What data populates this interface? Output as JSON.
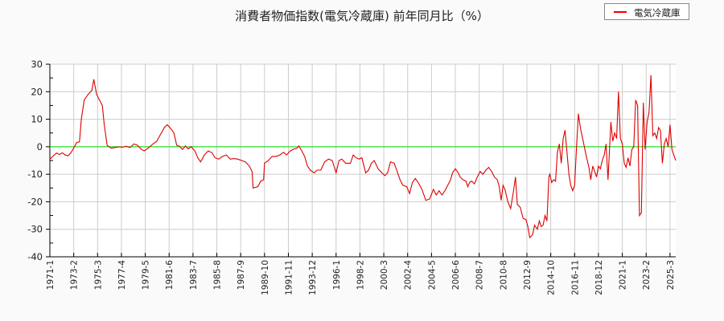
{
  "chart_data": {
    "type": "line",
    "title": "消費者物価指数(電気冷蔵庫) 前年同月比（%）",
    "xlabel": "",
    "ylabel": "",
    "ylim": [
      -40,
      30
    ],
    "yticks": [
      30,
      20,
      10,
      0,
      -10,
      -20,
      -30,
      -40
    ],
    "grid": true,
    "legend_position": "top-right",
    "x_tick_labels": [
      "1971-1",
      "1973-2",
      "1975-3",
      "1977-4",
      "1979-5",
      "1981-6",
      "1983-7",
      "1985-8",
      "1987-9",
      "1989-10",
      "1991-11",
      "1993-12",
      "1996-1",
      "1998-2",
      "2000-3",
      "2002-4",
      "2004-5",
      "2006-6",
      "2008-7",
      "2010-8",
      "2012-9",
      "2014-10",
      "2016-11",
      "2018-12",
      "2021-1",
      "2023-2",
      "2025-3"
    ],
    "reference_line": {
      "value": 0,
      "color": "#00dd00"
    },
    "series": [
      {
        "name": "電気冷蔵庫",
        "color": "#dd0000",
        "points": [
          [
            "1971-1",
            -4.5
          ],
          [
            "1971-4",
            -3.5
          ],
          [
            "1971-8",
            -2.3
          ],
          [
            "1971-11",
            -2.8
          ],
          [
            "1972-2",
            -2.2
          ],
          [
            "1972-5",
            -3
          ],
          [
            "1972-8",
            -3.3
          ],
          [
            "1972-11",
            -2.2
          ],
          [
            "1973-2",
            -0.5
          ],
          [
            "1973-5",
            1.5
          ],
          [
            "1973-8",
            1.8
          ],
          [
            "1973-10",
            10
          ],
          [
            "1974-1",
            17
          ],
          [
            "1974-5",
            19
          ],
          [
            "1974-9",
            20.5
          ],
          [
            "1974-11",
            24.5
          ],
          [
            "1975-2",
            19
          ],
          [
            "1975-5",
            17
          ],
          [
            "1975-8",
            15
          ],
          [
            "1975-10",
            8
          ],
          [
            "1976-1",
            0.5
          ],
          [
            "1976-5",
            -0.5
          ],
          [
            "1976-9",
            -0.3
          ],
          [
            "1977-1",
            0
          ],
          [
            "1977-5",
            -0.2
          ],
          [
            "1977-9",
            0.2
          ],
          [
            "1978-1",
            -0.3
          ],
          [
            "1978-5",
            1
          ],
          [
            "1978-9",
            0.5
          ],
          [
            "1979-1",
            -1
          ],
          [
            "1979-4",
            -1.5
          ],
          [
            "1979-8",
            -0.5
          ],
          [
            "1980-1",
            1
          ],
          [
            "1980-5",
            2
          ],
          [
            "1980-9",
            4.5
          ],
          [
            "1981-1",
            7
          ],
          [
            "1981-4",
            8
          ],
          [
            "1981-8",
            6.5
          ],
          [
            "1981-11",
            5
          ],
          [
            "1982-2",
            0.5
          ],
          [
            "1982-5",
            0.2
          ],
          [
            "1982-8",
            -1
          ],
          [
            "1982-11",
            0.3
          ],
          [
            "1983-2",
            -0.8
          ],
          [
            "1983-5",
            0
          ],
          [
            "1983-9",
            -1.5
          ],
          [
            "1983-12",
            -4
          ],
          [
            "1984-3",
            -5.5
          ],
          [
            "1984-7",
            -3
          ],
          [
            "1984-11",
            -1.5
          ],
          [
            "1985-3",
            -2.2
          ],
          [
            "1985-6",
            -4
          ],
          [
            "1985-10",
            -4.5
          ],
          [
            "1986-2",
            -3.5
          ],
          [
            "1986-6",
            -3
          ],
          [
            "1986-10",
            -4.5
          ],
          [
            "1987-2",
            -4.3
          ],
          [
            "1987-6",
            -4.5
          ],
          [
            "1987-10",
            -5
          ],
          [
            "1988-2",
            -5.5
          ],
          [
            "1988-6",
            -7
          ],
          [
            "1988-9",
            -9
          ],
          [
            "1988-10",
            -15
          ],
          [
            "1989-3",
            -14.5
          ],
          [
            "1989-6",
            -12.5
          ],
          [
            "1989-9",
            -12
          ],
          [
            "1989-10",
            -6
          ],
          [
            "1990-2",
            -5
          ],
          [
            "1990-6",
            -3.5
          ],
          [
            "1990-10",
            -3.5
          ],
          [
            "1991-2",
            -3
          ],
          [
            "1991-6",
            -2
          ],
          [
            "1991-9",
            -3
          ],
          [
            "1992-1",
            -1.5
          ],
          [
            "1992-5",
            -0.8
          ],
          [
            "1992-8",
            -0.5
          ],
          [
            "1992-10",
            0.3
          ],
          [
            "1993-1",
            -1.5
          ],
          [
            "1993-4",
            -3.5
          ],
          [
            "1993-7",
            -7
          ],
          [
            "1993-10",
            -8.5
          ],
          [
            "1994-2",
            -9.5
          ],
          [
            "1994-5",
            -8.5
          ],
          [
            "1994-9",
            -8.5
          ],
          [
            "1995-1",
            -5.5
          ],
          [
            "1995-5",
            -4.5
          ],
          [
            "1995-9",
            -5
          ],
          [
            "1996-1",
            -9.5
          ],
          [
            "1996-4",
            -5
          ],
          [
            "1996-7",
            -4.5
          ],
          [
            "1996-11",
            -6
          ],
          [
            "1997-4",
            -6
          ],
          [
            "1997-7",
            -3
          ],
          [
            "1997-10",
            -4
          ],
          [
            "1998-1",
            -4.5
          ],
          [
            "1998-4",
            -4
          ],
          [
            "1998-8",
            -9.5
          ],
          [
            "1998-11",
            -8.5
          ],
          [
            "1999-2",
            -6
          ],
          [
            "1999-5",
            -5
          ],
          [
            "1999-9",
            -8
          ],
          [
            "2000-1",
            -9.5
          ],
          [
            "2000-4",
            -10.5
          ],
          [
            "2000-7",
            -9.5
          ],
          [
            "2000-10",
            -5.5
          ],
          [
            "2001-2",
            -6
          ],
          [
            "2001-5",
            -9
          ],
          [
            "2001-8",
            -12
          ],
          [
            "2001-11",
            -14
          ],
          [
            "2002-3",
            -14.5
          ],
          [
            "2002-6",
            -17
          ],
          [
            "2002-9",
            -13
          ],
          [
            "2002-12",
            -11.5
          ],
          [
            "2003-3",
            -13
          ],
          [
            "2003-7",
            -15.5
          ],
          [
            "2003-11",
            -19.5
          ],
          [
            "2004-3",
            -19
          ],
          [
            "2004-7",
            -15.5
          ],
          [
            "2004-10",
            -17.5
          ],
          [
            "2005-1",
            -16
          ],
          [
            "2005-4",
            -17.5
          ],
          [
            "2005-7",
            -16
          ],
          [
            "2005-10",
            -14
          ],
          [
            "2006-1",
            -12
          ],
          [
            "2006-3",
            -9.5
          ],
          [
            "2006-6",
            -8
          ],
          [
            "2006-9",
            -9.5
          ],
          [
            "2006-11",
            -11
          ],
          [
            "2007-2",
            -12
          ],
          [
            "2007-5",
            -12.5
          ],
          [
            "2007-7",
            -14.5
          ],
          [
            "2007-9",
            -13
          ],
          [
            "2007-11",
            -12.5
          ],
          [
            "2008-2",
            -13.5
          ],
          [
            "2008-5",
            -11
          ],
          [
            "2008-8",
            -9
          ],
          [
            "2008-11",
            -10
          ],
          [
            "2009-2",
            -8.5
          ],
          [
            "2009-5",
            -7.5
          ],
          [
            "2009-8",
            -9
          ],
          [
            "2009-11",
            -11
          ],
          [
            "2010-2",
            -12
          ],
          [
            "2010-4",
            -14.5
          ],
          [
            "2010-6",
            -19.5
          ],
          [
            "2010-8",
            -14
          ],
          [
            "2010-10",
            -15.5
          ],
          [
            "2011-1",
            -20
          ],
          [
            "2011-4",
            -22.5
          ],
          [
            "2011-7",
            -16
          ],
          [
            "2011-9",
            -11
          ],
          [
            "2011-11",
            -21
          ],
          [
            "2012-2",
            -22
          ],
          [
            "2012-5",
            -26
          ],
          [
            "2012-8",
            -26.5
          ],
          [
            "2012-10",
            -29
          ],
          [
            "2012-12",
            -33
          ],
          [
            "2013-3",
            -32
          ],
          [
            "2013-5",
            -28.5
          ],
          [
            "2013-8",
            -30
          ],
          [
            "2013-10",
            -27
          ],
          [
            "2013-12",
            -29
          ],
          [
            "2014-2",
            -28.5
          ],
          [
            "2014-4",
            -25
          ],
          [
            "2014-6",
            -27
          ],
          [
            "2014-8",
            -11
          ],
          [
            "2014-9",
            -10
          ],
          [
            "2014-11",
            -13
          ],
          [
            "2015-1",
            -12
          ],
          [
            "2015-3",
            -12.5
          ],
          [
            "2015-5",
            -2
          ],
          [
            "2015-7",
            1
          ],
          [
            "2015-9",
            -6
          ],
          [
            "2015-11",
            3
          ],
          [
            "2016-1",
            6
          ],
          [
            "2016-3",
            -2
          ],
          [
            "2016-5",
            -10
          ],
          [
            "2016-7",
            -14
          ],
          [
            "2016-9",
            -16
          ],
          [
            "2016-11",
            -14
          ],
          [
            "2017-1",
            0
          ],
          [
            "2017-3",
            12
          ],
          [
            "2017-5",
            7
          ],
          [
            "2017-8",
            2
          ],
          [
            "2017-11",
            -3
          ],
          [
            "2018-2",
            -7.5
          ],
          [
            "2018-4",
            -12
          ],
          [
            "2018-6",
            -7
          ],
          [
            "2018-8",
            -9
          ],
          [
            "2018-10",
            -11
          ],
          [
            "2018-12",
            -7
          ],
          [
            "2019-2",
            -8
          ],
          [
            "2019-4",
            -5
          ],
          [
            "2019-6",
            -3
          ],
          [
            "2019-8",
            1
          ],
          [
            "2019-10",
            -12
          ],
          [
            "2020-1",
            9
          ],
          [
            "2020-3",
            2
          ],
          [
            "2020-5",
            5
          ],
          [
            "2020-7",
            3
          ],
          [
            "2020-9",
            20
          ],
          [
            "2020-11",
            3
          ],
          [
            "2021-1",
            1
          ],
          [
            "2021-3",
            -6
          ],
          [
            "2021-5",
            -7.5
          ],
          [
            "2021-7",
            -4
          ],
          [
            "2021-9",
            -7
          ],
          [
            "2021-11",
            -1
          ],
          [
            "2022-1",
            0
          ],
          [
            "2022-3",
            17
          ],
          [
            "2022-5",
            15
          ],
          [
            "2022-7",
            -25
          ],
          [
            "2022-9",
            -24
          ],
          [
            "2022-11",
            16
          ],
          [
            "2023-1",
            -1
          ],
          [
            "2023-3",
            9
          ],
          [
            "2023-5",
            12.5
          ],
          [
            "2023-7",
            26
          ],
          [
            "2023-9",
            4
          ],
          [
            "2023-11",
            5
          ],
          [
            "2024-1",
            3
          ],
          [
            "2024-3",
            7
          ],
          [
            "2024-5",
            6
          ],
          [
            "2024-7",
            -6
          ],
          [
            "2024-9",
            1
          ],
          [
            "2024-11",
            3
          ],
          [
            "2025-1",
            0
          ],
          [
            "2025-3",
            8
          ],
          [
            "2025-5",
            -1
          ],
          [
            "2025-7",
            -3
          ],
          [
            "2025-9",
            -5
          ]
        ]
      }
    ]
  },
  "legend": {
    "label": "電気冷蔵庫"
  }
}
